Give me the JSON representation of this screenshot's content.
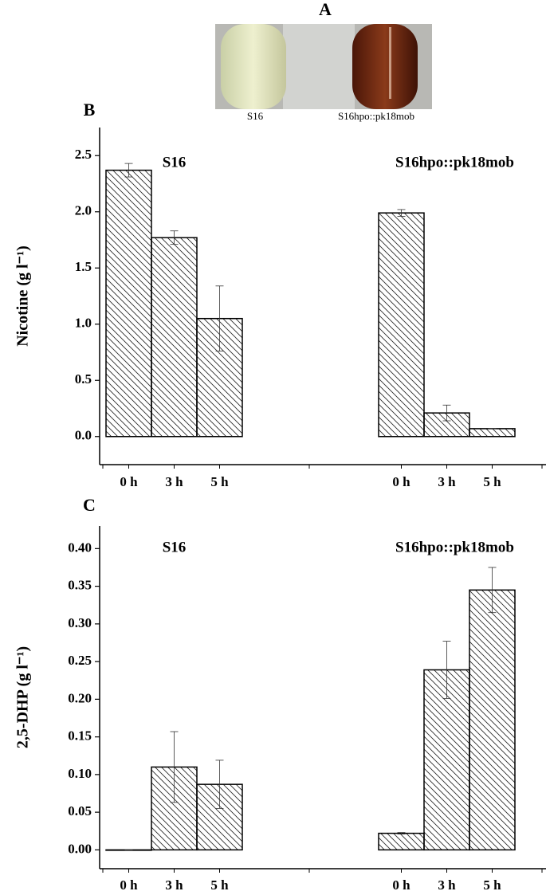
{
  "panel_a": {
    "label": "A",
    "tubes": [
      "S16",
      "S16hpo::pk18mob"
    ]
  },
  "chart_data": [
    {
      "type": "bar",
      "panel_label": "B",
      "ylabel": "Nicotine (g l⁻¹)",
      "ylim": [
        -0.25,
        2.75
      ],
      "yticks": [
        {
          "value": 0,
          "label": "0.0"
        },
        0.5,
        {
          "value": 1,
          "label": "1.0"
        },
        1.5,
        {
          "value": 2,
          "label": "2.0"
        },
        2.5
      ],
      "hatch_color": "#222222",
      "groups": [
        {
          "name": "S16",
          "categories": [
            "0 h",
            "3 h",
            "5 h"
          ],
          "values": [
            2.37,
            1.77,
            1.05
          ],
          "errors": [
            0.06,
            0.06,
            0.29
          ]
        },
        {
          "name": "S16hpo::pk18mob",
          "categories": [
            "0 h",
            "3 h",
            "5 h"
          ],
          "values": [
            1.99,
            0.21,
            0.07
          ],
          "errors": [
            0.03,
            0.07,
            0
          ]
        }
      ]
    },
    {
      "type": "bar",
      "panel_label": "C",
      "ylabel": "2,5-DHP (g l⁻¹)",
      "ylim": [
        -0.025,
        0.43
      ],
      "yticks": [
        {
          "value": 0,
          "label": "0.00"
        },
        0.05,
        {
          "value": 0.1,
          "label": "0.10"
        },
        0.15,
        {
          "value": 0.2,
          "label": "0.20"
        },
        0.25,
        {
          "value": 0.3,
          "label": "0.30"
        },
        0.35,
        {
          "value": 0.4,
          "label": "0.40"
        }
      ],
      "hatch_color": "#222222",
      "groups": [
        {
          "name": "S16",
          "categories": [
            "0 h",
            "3 h",
            "5 h"
          ],
          "values": [
            0,
            0.11,
            0.087
          ],
          "errors": [
            0,
            0.047,
            0.032
          ]
        },
        {
          "name": "S16hpo::pk18mob",
          "categories": [
            "0 h",
            "3 h",
            "5 h"
          ],
          "values": [
            0.022,
            0.239,
            0.345
          ],
          "errors": [
            0.001,
            0.038,
            0.03
          ]
        }
      ]
    }
  ]
}
